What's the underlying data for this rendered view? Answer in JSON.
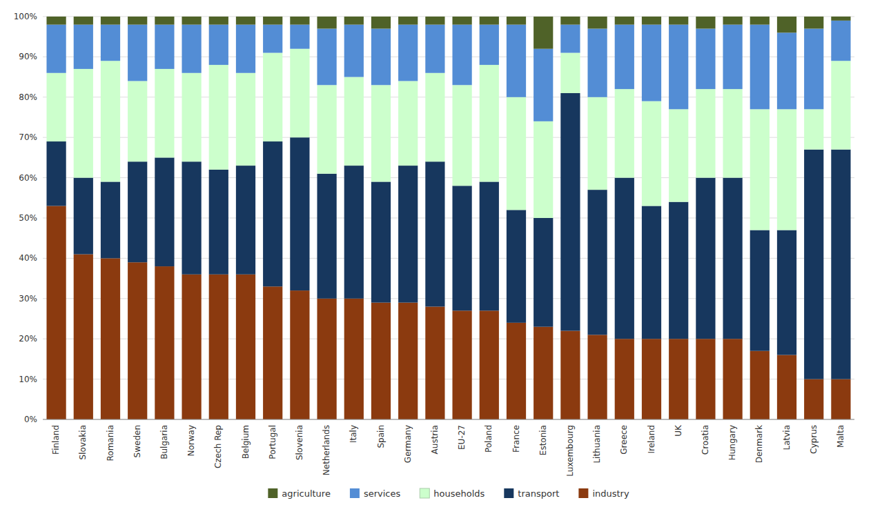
{
  "chart_data": {
    "type": "bar",
    "stacked": true,
    "grid": true,
    "legend": "bottom",
    "categories": [
      "Finland",
      "Slovakia",
      "Romania",
      "Sweden",
      "Bulgaria",
      "Norway",
      "Czech Rep",
      "Belgium",
      "Portugal",
      "Slovenia",
      "Netherlands",
      "Italy",
      "Spain",
      "Germany",
      "Austria",
      "EU-27",
      "Poland",
      "France",
      "Estonia",
      "Luxembourg",
      "Lithuania",
      "Greece",
      "Ireland",
      "UK",
      "Croatia",
      "Hungary",
      "Denmark",
      "Latvia",
      "Cyprus",
      "Malta"
    ],
    "series": [
      {
        "name": "industry",
        "color": "#8B3A0F",
        "values": [
          53,
          41,
          40,
          39,
          38,
          36,
          36,
          36,
          33,
          32,
          30,
          30,
          29,
          29,
          28,
          27,
          27,
          24,
          23,
          22,
          21,
          20,
          20,
          20,
          20,
          20,
          17,
          16,
          10,
          10
        ]
      },
      {
        "name": "transport",
        "color": "#17375E",
        "values": [
          16,
          19,
          19,
          25,
          27,
          28,
          26,
          27,
          36,
          38,
          31,
          33,
          30,
          34,
          36,
          31,
          32,
          28,
          27,
          59,
          36,
          40,
          33,
          34,
          40,
          40,
          30,
          31,
          57,
          57
        ]
      },
      {
        "name": "households",
        "color": "#CCFFCC",
        "values": [
          17,
          27,
          30,
          20,
          22,
          22,
          26,
          23,
          22,
          22,
          22,
          22,
          24,
          21,
          22,
          25,
          29,
          28,
          24,
          10,
          23,
          22,
          26,
          23,
          22,
          22,
          30,
          30,
          10,
          22
        ]
      },
      {
        "name": "services",
        "color": "#538DD5",
        "values": [
          12,
          11,
          9,
          14,
          11,
          12,
          10,
          12,
          7,
          6,
          14,
          13,
          14,
          14,
          12,
          15,
          10,
          18,
          18,
          7,
          17,
          16,
          19,
          21,
          15,
          16,
          21,
          19,
          20,
          10
        ]
      },
      {
        "name": "agriculture",
        "color": "#4F6228",
        "values": [
          2,
          2,
          2,
          2,
          2,
          2,
          2,
          2,
          2,
          2,
          3,
          2,
          3,
          2,
          2,
          2,
          2,
          2,
          8,
          2,
          3,
          2,
          2,
          2,
          3,
          2,
          2,
          4,
          3,
          1
        ]
      }
    ],
    "ylim": [
      0,
      100
    ],
    "yticks": [
      {
        "value": 0,
        "label": "0%"
      },
      {
        "value": 10,
        "label": "10%"
      },
      {
        "value": 20,
        "label": "20%"
      },
      {
        "value": 30,
        "label": "30%"
      },
      {
        "value": 40,
        "label": "40%"
      },
      {
        "value": 50,
        "label": "50%"
      },
      {
        "value": 60,
        "label": "60%"
      },
      {
        "value": 70,
        "label": "70%"
      },
      {
        "value": 80,
        "label": "80%"
      },
      {
        "value": 90,
        "label": "90%"
      },
      {
        "value": 100,
        "label": "100%"
      }
    ]
  }
}
